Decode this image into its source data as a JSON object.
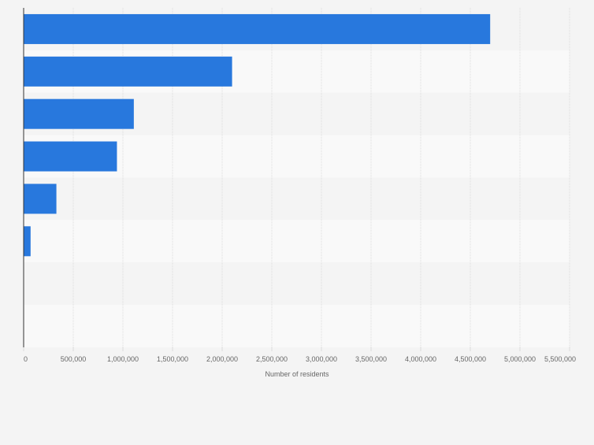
{
  "chart_data": {
    "type": "bar",
    "orientation": "horizontal",
    "title": "",
    "xlabel": "Number of residents",
    "ylabel": "",
    "categories": [
      "",
      "",
      "",
      "",
      "",
      "",
      "",
      ""
    ],
    "values": [
      4700000,
      2100000,
      1110000,
      940000,
      330000,
      70000,
      0,
      0
    ],
    "xlim": [
      0,
      5500000
    ],
    "xticks": [
      0,
      500000,
      1000000,
      1500000,
      2000000,
      2500000,
      3000000,
      3500000,
      4000000,
      4500000,
      5000000,
      5500000
    ],
    "xtick_labels": [
      "0",
      "500,000",
      "1,000,000",
      "1,500,000",
      "2,000,000",
      "2,500,000",
      "3,000,000",
      "3,500,000",
      "4,000,000",
      "4,500,000",
      "5,000,000",
      "5,500,000"
    ],
    "grid": true,
    "colors": {
      "bar": "#2878dd",
      "background": "#f4f4f4",
      "band_alt": "#f9f9f9",
      "grid": "#dddddd",
      "axis": "#333333",
      "tick_text": "#666666",
      "label_text": "#666666"
    }
  }
}
